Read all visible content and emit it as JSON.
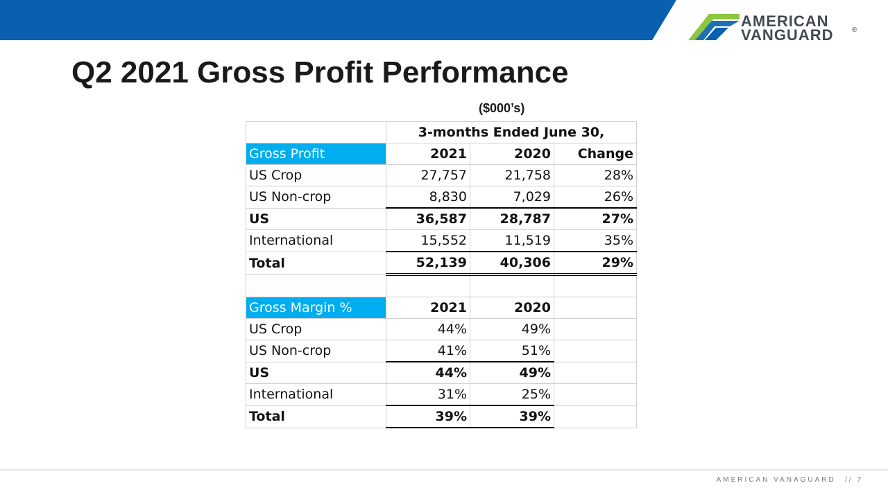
{
  "header": {
    "title": "Q2 2021 Gross Profit Performance",
    "units": "($000’s)",
    "accent_color": "#0a5fb0"
  },
  "logo": {
    "line1": "AMERICAN",
    "line2": "VANGUARD",
    "registered": "®",
    "icon": "vanguard-chevron-logo"
  },
  "table": {
    "period_header": "3-months Ended June 30,",
    "gross_profit": {
      "label": "Gross Profit",
      "columns": [
        "2021",
        "2020",
        "Change"
      ],
      "rows": [
        {
          "label": "US Crop",
          "v2021": "27,757",
          "v2020": "21,758",
          "change": "28%"
        },
        {
          "label": "US Non-crop",
          "v2021": "8,830",
          "v2020": "7,029",
          "change": "26%"
        },
        {
          "label": "US",
          "v2021": "36,587",
          "v2020": "28,787",
          "change": "27%"
        },
        {
          "label": "International",
          "v2021": "15,552",
          "v2020": "11,519",
          "change": "35%"
        },
        {
          "label": "Total",
          "v2021": "52,139",
          "v2020": "40,306",
          "change": "29%"
        }
      ]
    },
    "gross_margin": {
      "label": "Gross Margin %",
      "columns": [
        "2021",
        "2020"
      ],
      "rows": [
        {
          "label": "US Crop",
          "v2021": "44%",
          "v2020": "49%"
        },
        {
          "label": "US Non-crop",
          "v2021": "41%",
          "v2020": "51%"
        },
        {
          "label": "US",
          "v2021": "44%",
          "v2020": "49%"
        },
        {
          "label": "International",
          "v2021": "31%",
          "v2020": "25%"
        },
        {
          "label": "Total",
          "v2021": "39%",
          "v2020": "39%"
        }
      ]
    },
    "header_color": "#00aeef"
  },
  "footer": {
    "company": "AMERICAN VANAGUARD",
    "separator": "//",
    "page": "7"
  }
}
